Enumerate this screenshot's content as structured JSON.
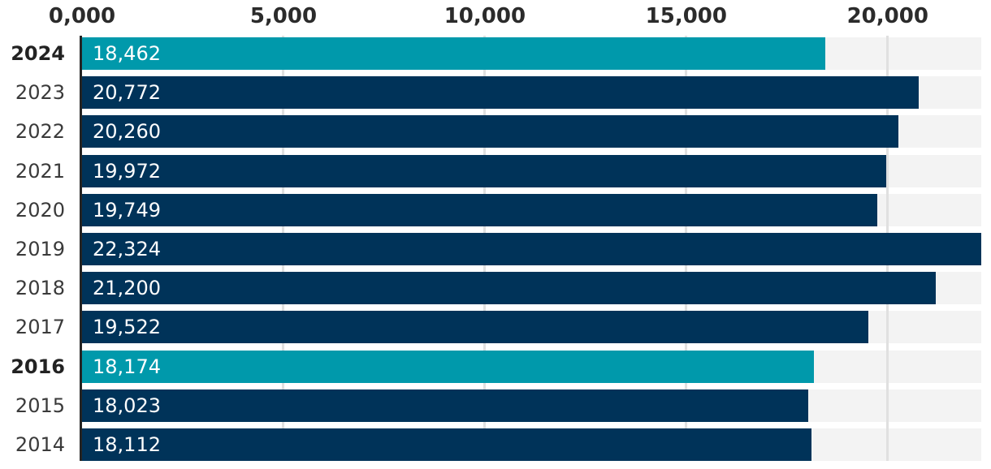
{
  "chart_data": {
    "type": "bar",
    "orientation": "horizontal",
    "categories": [
      "2024",
      "2023",
      "2022",
      "2021",
      "2020",
      "2019",
      "2018",
      "2017",
      "2016",
      "2015",
      "2014"
    ],
    "values": [
      18462,
      20772,
      20260,
      19972,
      19749,
      22324,
      21200,
      19522,
      18174,
      18023,
      18112
    ],
    "value_labels": [
      "18,462",
      "20,772",
      "20,260",
      "19,972",
      "19,749",
      "22,324",
      "21,200",
      "19,522",
      "18,174",
      "18,023",
      "18,112"
    ],
    "highlighted_categories": [
      "2024",
      "2016"
    ],
    "x_ticks": [
      {
        "value": 0,
        "label": "0,000"
      },
      {
        "value": 5000,
        "label": "5,000"
      },
      {
        "value": 10000,
        "label": "10,000"
      },
      {
        "value": 15000,
        "label": "15,000"
      },
      {
        "value": 20000,
        "label": "20,000"
      }
    ],
    "xlim": [
      0,
      22324
    ],
    "grid": true,
    "legend": false,
    "colors": {
      "bar": "#003359",
      "bar_highlight": "#0099ab",
      "track": "#f3f3f3",
      "gridline": "#e0e0e0",
      "axis_line": "#242424",
      "tick_text": "#2b2b2b",
      "category_text": "#3a3a3a",
      "category_text_highlight": "#222222",
      "value_text": "#ffffff",
      "background": "#ffffff"
    }
  }
}
